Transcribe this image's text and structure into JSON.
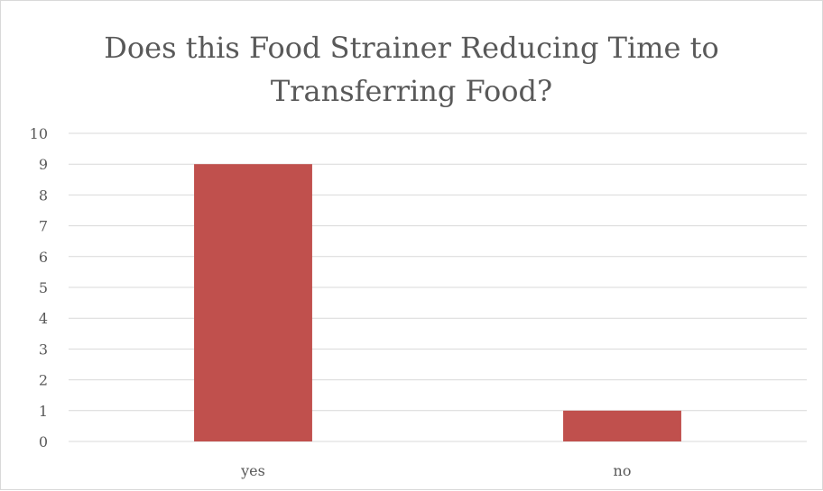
{
  "chart_data": {
    "type": "bar",
    "title": "Does this Food Strainer Reducing Time to Transferring Food?",
    "categories": [
      "yes",
      "no"
    ],
    "values": [
      9,
      1
    ],
    "ylim": [
      0,
      10
    ],
    "yticks": [
      0,
      1,
      2,
      3,
      4,
      5,
      6,
      7,
      8,
      9,
      10
    ],
    "xlabel": "",
    "ylabel": "",
    "grid": true,
    "legend": "none",
    "bar_color": "#c0504d"
  }
}
